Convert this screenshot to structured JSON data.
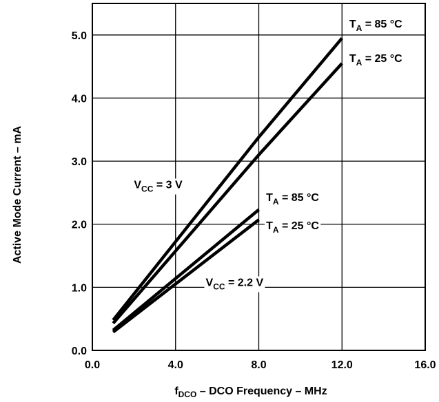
{
  "chart_data": {
    "type": "line",
    "title": "",
    "xlabel": {
      "main": "f",
      "sub": "DCO",
      "rest": " – DCO Frequency – MHz"
    },
    "ylabel": "Active Mode Current – mA",
    "xlim": [
      0,
      16
    ],
    "ylim": [
      0,
      5.5
    ],
    "x_ticks": [
      0,
      4,
      8,
      12,
      16
    ],
    "x_tick_labels": [
      "0.0",
      "4.0",
      "8.0",
      "12.0",
      "16.0"
    ],
    "y_ticks": [
      0,
      1,
      2,
      3,
      4,
      5
    ],
    "y_tick_labels": [
      "0.0",
      "1.0",
      "2.0",
      "3.0",
      "4.0",
      "5.0"
    ],
    "grid": true,
    "legend": "none",
    "series": [
      {
        "name": "VCC = 3 V, TA = 85 °C",
        "x": [
          1,
          8,
          12
        ],
        "y": [
          0.48,
          3.38,
          4.95
        ]
      },
      {
        "name": "VCC = 3 V, TA = 25 °C",
        "x": [
          1,
          8,
          12
        ],
        "y": [
          0.43,
          3.1,
          4.55
        ]
      },
      {
        "name": "VCC = 2.2 V, TA = 85 °C",
        "x": [
          1,
          8
        ],
        "y": [
          0.32,
          2.23
        ]
      },
      {
        "name": "VCC = 2.2 V, TA = 25 °C",
        "x": [
          1,
          8
        ],
        "y": [
          0.29,
          2.07
        ]
      }
    ],
    "annotations": [
      {
        "main": "T",
        "sub": "A",
        "rest": " = 85 °C",
        "x": 12.35,
        "y": 5.12
      },
      {
        "main": "T",
        "sub": "A",
        "rest": " = 25 °C",
        "x": 12.35,
        "y": 4.57
      },
      {
        "main": "V",
        "sub": "CC",
        "rest": " = 3 V",
        "x": 2.0,
        "y": 2.57
      },
      {
        "main": "T",
        "sub": "A",
        "rest": " = 85 °C",
        "x": 8.35,
        "y": 2.37
      },
      {
        "main": "T",
        "sub": "A",
        "rest": " = 25 °C",
        "x": 8.35,
        "y": 1.92
      },
      {
        "main": "V",
        "sub": "CC",
        "rest": " = 2.2 V",
        "x": 5.45,
        "y": 1.02
      }
    ]
  }
}
